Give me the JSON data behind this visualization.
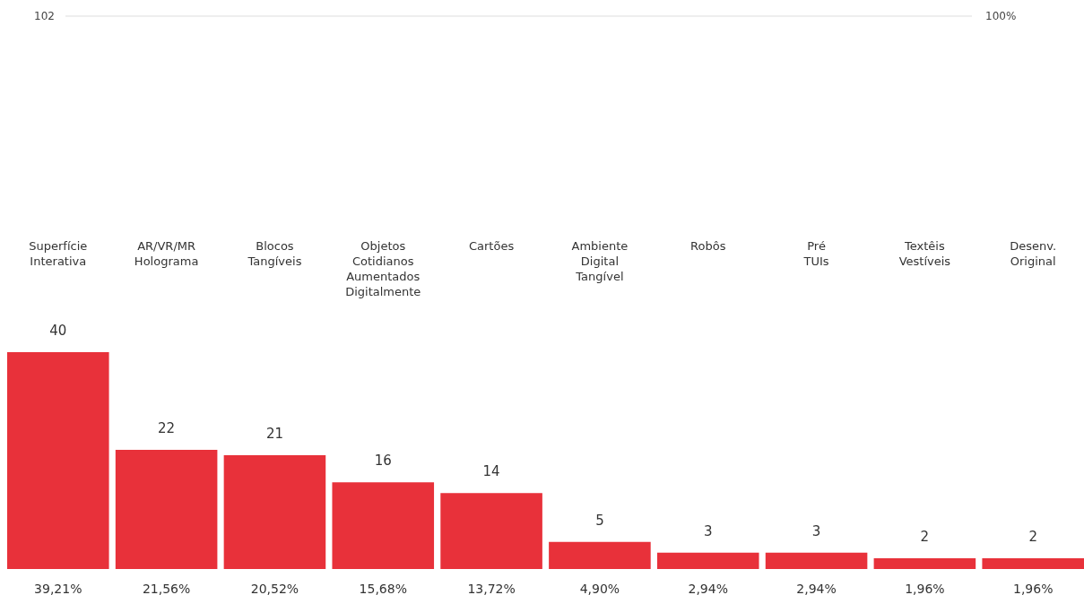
{
  "chart_data": {
    "type": "bar",
    "categories": [
      "Superfície\nInterativa",
      "AR/VR/MR\nHolograma",
      "Blocos\nTangíveis",
      "Objetos\nCotidianos\nAumentados\nDigitalmente",
      "Cartões",
      "Ambiente\nDigital\nTangível",
      "Robôs",
      "Pré\nTUIs",
      "Textêis\nVestíveis",
      "Desenv.\nOriginal"
    ],
    "values": [
      40,
      22,
      21,
      16,
      14,
      5,
      3,
      3,
      2,
      2
    ],
    "color": "#e8313a",
    "ylim": [
      0,
      102
    ],
    "data_labels": true,
    "ref_lines": [
      {
        "axis": "y",
        "value": 102,
        "label": "102"
      }
    ],
    "annotations": [
      "100%",
      {
        "text": "39,21%",
        "x": "Superfície\nInterativa",
        "y": 0
      },
      {
        "text": "21,56%",
        "x": "AR/VR/MR\nHolograma",
        "y": 0
      },
      {
        "text": "20,52%",
        "x": "Blocos\nTangíveis",
        "y": 0
      },
      {
        "text": "15,68%",
        "x": "Objetos\nCotidianos\nAumentados\nDigitalmente",
        "y": 0
      },
      {
        "text": "13,72%",
        "x": "Cartões",
        "y": 0
      },
      {
        "text": "4,90%",
        "x": "Ambiente\nDigital\nTangível",
        "y": 0
      },
      {
        "text": "2,94%",
        "x": "Robôs",
        "y": 0
      },
      {
        "text": "2,94%",
        "x": "Pré\nTUIs",
        "y": 0
      },
      {
        "text": "1,96%",
        "x": "Textêis\nVestíveis",
        "y": 0
      },
      {
        "text": "1,96%",
        "x": "Desenv.\nOriginal",
        "y": 0
      }
    ]
  }
}
